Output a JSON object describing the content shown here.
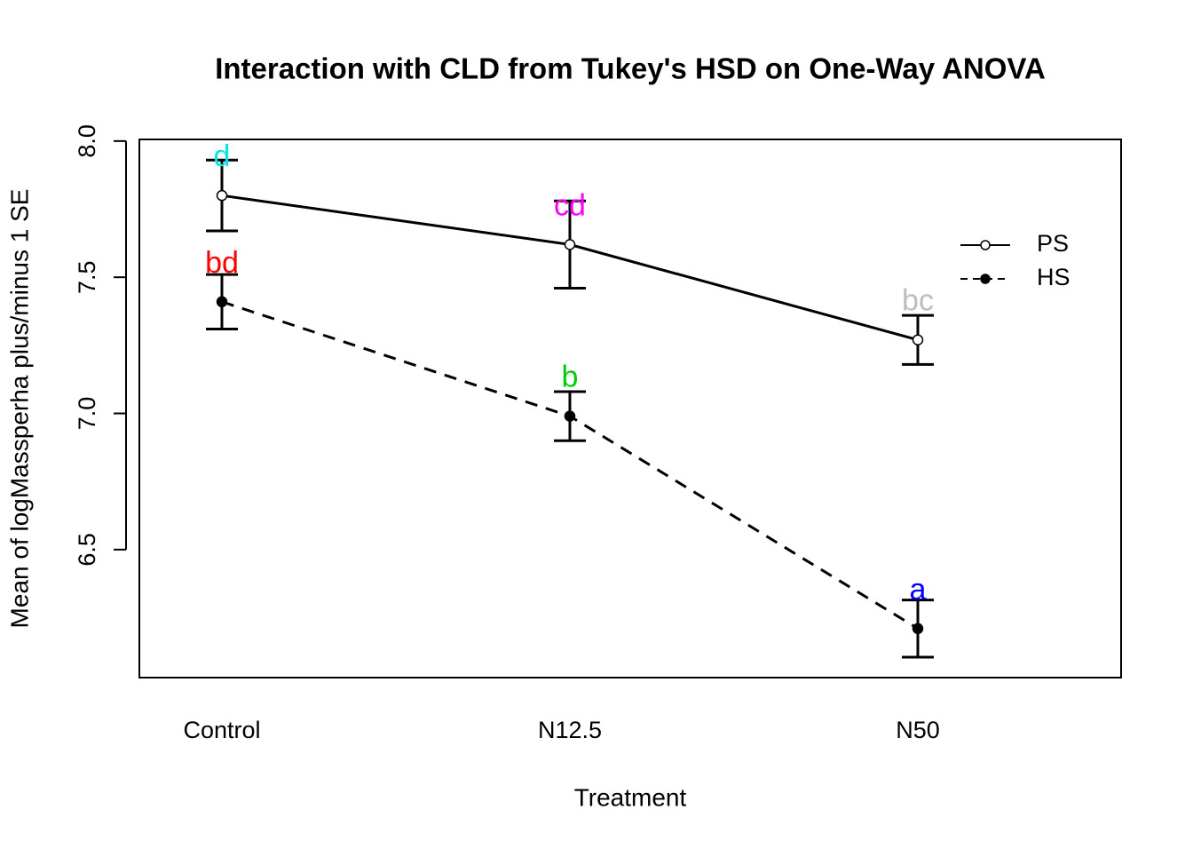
{
  "chart_data": {
    "type": "line",
    "title": "Interaction with CLD from Tukey's HSD on One-Way ANOVA",
    "x_label": "Treatment",
    "y_label": "Mean of  logMassperha plus/minus 1 SE",
    "categories": [
      "Control",
      "N12.5",
      "N50"
    ],
    "ylim": [
      6.03,
      8.006
    ],
    "yticks": [
      {
        "value": 6.5,
        "label": "6.5"
      },
      {
        "value": 7,
        "label": "7.0"
      },
      {
        "value": 7.5,
        "label": "7.5"
      },
      {
        "value": 8,
        "label": "8.0"
      }
    ],
    "legend_position": "right",
    "series": [
      {
        "name": "PS",
        "color": "#000000",
        "line_style": "solid",
        "marker": "open-circle",
        "values": [
          7.8,
          7.62,
          7.27
        ],
        "errors": [
          0.13,
          0.16,
          0.09
        ],
        "letters": [
          "d",
          "cd",
          "bc"
        ],
        "letter_colors": [
          "#00e5e5",
          "#ff00ff",
          "#bebebe"
        ]
      },
      {
        "name": "HS",
        "color": "#000000",
        "line_style": "dashed",
        "marker": "filled-circle",
        "values": [
          7.41,
          6.99,
          6.21
        ],
        "errors": [
          0.1,
          0.09,
          0.105
        ],
        "letters": [
          "bd",
          "b",
          "a"
        ],
        "letter_colors": [
          "#ff0000",
          "#00cd00",
          "#0000ff"
        ]
      }
    ]
  }
}
